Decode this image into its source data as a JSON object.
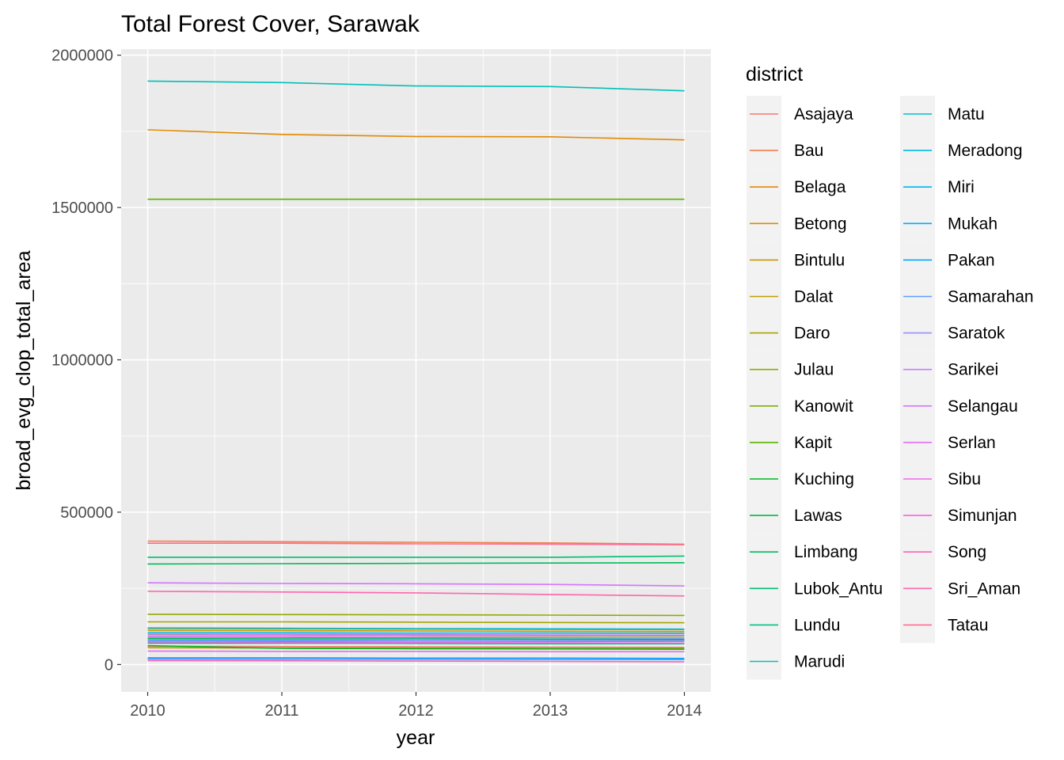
{
  "chart_data": {
    "type": "line",
    "title": "Total Forest Cover, Sarawak",
    "xlabel": "year",
    "ylabel": "broad_evg_clop_total_area",
    "x": [
      2010,
      2011,
      2012,
      2013,
      2014
    ],
    "x_ticks": [
      "2010",
      "2011",
      "2012",
      "2013",
      "2014"
    ],
    "ylim": [
      -90000,
      2020000
    ],
    "y_ticks": [
      0,
      500000,
      1000000,
      1500000,
      2000000
    ],
    "y_tick_labels": [
      "0",
      "500000",
      "1000000",
      "1500000",
      "2000000"
    ],
    "grid": true,
    "legend": {
      "title": "district",
      "placement": "right",
      "columns": 2
    },
    "series": [
      {
        "name": "Asajaya",
        "color": "#F8766D",
        "values": [
          60000,
          59000,
          58000,
          57000,
          56000
        ]
      },
      {
        "name": "Bau",
        "color": "#F07E4C",
        "values": [
          405000,
          403000,
          401000,
          399000,
          395000
        ]
      },
      {
        "name": "Belaga",
        "color": "#E38900",
        "values": [
          1755000,
          1740000,
          1733000,
          1732000,
          1722000
        ]
      },
      {
        "name": "Betong",
        "color": "#D89000",
        "values": [
          118000,
          117000,
          116000,
          115000,
          114000
        ]
      },
      {
        "name": "Bintulu",
        "color": "#CA9700",
        "values": [
          112000,
          111000,
          110000,
          109000,
          108000
        ]
      },
      {
        "name": "Dalat",
        "color": "#BA9E00",
        "values": [
          55000,
          54000,
          54000,
          53000,
          53000
        ]
      },
      {
        "name": "Daro",
        "color": "#A8A400",
        "values": [
          140000,
          140000,
          139000,
          138000,
          137000
        ]
      },
      {
        "name": "Julau",
        "color": "#93AA00",
        "values": [
          165000,
          164000,
          163000,
          162000,
          161000
        ]
      },
      {
        "name": "Kanowit",
        "color": "#7CAE00",
        "values": [
          98000,
          97000,
          96000,
          95000,
          94000
        ]
      },
      {
        "name": "Kapit",
        "color": "#5BB300",
        "values": [
          1527000,
          1527000,
          1527000,
          1527000,
          1527000
        ]
      },
      {
        "name": "Kuching",
        "color": "#00B81F",
        "values": [
          62000,
          53000,
          52000,
          51000,
          50000
        ]
      },
      {
        "name": "Lawas",
        "color": "#00BA42",
        "values": [
          85000,
          84000,
          84000,
          83000,
          82000
        ]
      },
      {
        "name": "Limbang",
        "color": "#00BC59",
        "values": [
          330000,
          331000,
          332000,
          333000,
          334000
        ]
      },
      {
        "name": "Lubok_Antu",
        "color": "#00BE70",
        "values": [
          352000,
          352000,
          352000,
          352000,
          356000
        ]
      },
      {
        "name": "Lundu",
        "color": "#00BF84",
        "values": [
          70000,
          70000,
          69000,
          68000,
          68000
        ]
      },
      {
        "name": "Marudi",
        "color": "#00C0B8",
        "values": [
          1915000,
          1910000,
          1899000,
          1897000,
          1883000
        ]
      },
      {
        "name": "Matu",
        "color": "#00BDD0",
        "values": [
          120000,
          119000,
          118000,
          117000,
          116000
        ]
      },
      {
        "name": "Meradong",
        "color": "#00B9E3",
        "values": [
          105000,
          104000,
          103000,
          103000,
          102000
        ]
      },
      {
        "name": "Miri",
        "color": "#00B4EF",
        "values": [
          78000,
          77000,
          77000,
          76000,
          76000
        ]
      },
      {
        "name": "Mukah",
        "color": "#00ADFA",
        "values": [
          90000,
          89000,
          88000,
          88000,
          87000
        ]
      },
      {
        "name": "Pakan",
        "color": "#00A5FF",
        "values": [
          22000,
          22000,
          21000,
          21000,
          20000
        ]
      },
      {
        "name": "Samarahan",
        "color": "#619CFF",
        "values": [
          18000,
          17000,
          17000,
          16000,
          16000
        ]
      },
      {
        "name": "Saratok",
        "color": "#9590FF",
        "values": [
          80000,
          80000,
          79000,
          79000,
          78000
        ]
      },
      {
        "name": "Sarikei",
        "color": "#C77CFF",
        "values": [
          100000,
          99000,
          98000,
          97000,
          96000
        ]
      },
      {
        "name": "Selangau",
        "color": "#D575FE",
        "values": [
          268000,
          266000,
          265000,
          263000,
          258000
        ]
      },
      {
        "name": "Serlan",
        "color": "#E26EF7",
        "values": [
          44000,
          43000,
          43000,
          42000,
          42000
        ]
      },
      {
        "name": "Sibu",
        "color": "#F066EB",
        "values": [
          92000,
          91000,
          90000,
          89000,
          88000
        ]
      },
      {
        "name": "Simunjan",
        "color": "#FA62DB",
        "values": [
          74000,
          73000,
          72000,
          71000,
          70000
        ]
      },
      {
        "name": "Song",
        "color": "#FF62BC",
        "values": [
          13000,
          12000,
          11000,
          10000,
          9000
        ]
      },
      {
        "name": "Sri_Aman",
        "color": "#FF65AE",
        "values": [
          240000,
          238000,
          235000,
          230000,
          225000
        ]
      },
      {
        "name": "Tatau",
        "color": "#FF6C91",
        "values": [
          398000,
          398000,
          396000,
          395000,
          393000
        ]
      }
    ]
  }
}
